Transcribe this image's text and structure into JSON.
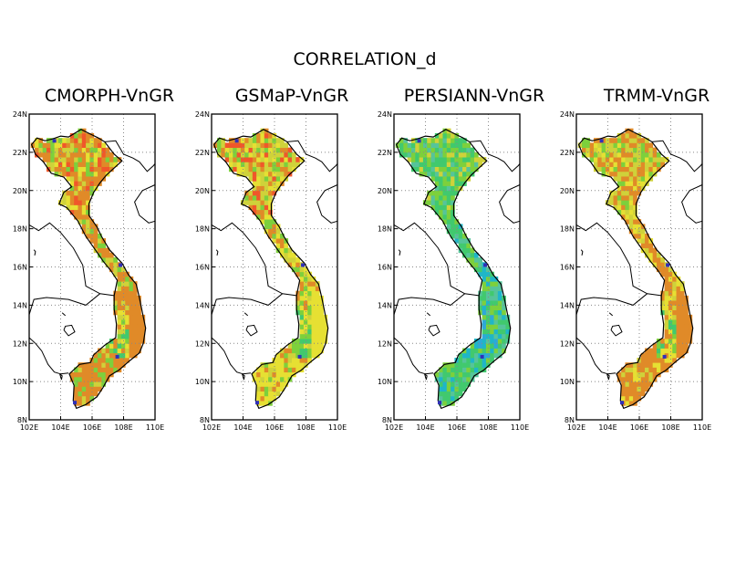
{
  "title": "CORRELATION_d",
  "panels": [
    {
      "title": "CMORPH-VnGR",
      "palette": {
        "north": [
          "#e08a28",
          "#e08a28",
          "#e08a28",
          "#cfd23a",
          "#e6e033",
          "#f0572a",
          "#7dd03c"
        ],
        "center": [
          "#e08a28",
          "#e08a28",
          "#e08a28",
          "#cfd23a",
          "#7dd03c"
        ],
        "south": [
          "#e08a28",
          "#cfd23a",
          "#7dd03c",
          "#41c96e",
          "#e6e033",
          "#e08a28"
        ],
        "coast": "#e08a28"
      }
    },
    {
      "title": "GSMaP-VnGR",
      "palette": {
        "north": [
          "#e08a28",
          "#cfd23a",
          "#e6e033",
          "#cfd23a",
          "#7dd03c",
          "#f0572a"
        ],
        "center": [
          "#e08a28",
          "#cfd23a",
          "#e6e033",
          "#7dd03c"
        ],
        "south": [
          "#cfd23a",
          "#7dd03c",
          "#41c96e",
          "#e6e033",
          "#7dd03c"
        ],
        "coast": "#e6e033"
      }
    },
    {
      "title": "PERSIANN-VnGR",
      "palette": {
        "north": [
          "#7dd03c",
          "#41c96e",
          "#7dd03c",
          "#cfd23a",
          "#41c96e",
          "#56c49a"
        ],
        "center": [
          "#7dd03c",
          "#41c96e",
          "#56c49a",
          "#1fb6c8"
        ],
        "south": [
          "#41c96e",
          "#56c49a",
          "#1fb6c8",
          "#7dd03c",
          "#2ea8d8"
        ],
        "coast": "#41c96e"
      }
    },
    {
      "title": "TRMM-VnGR",
      "palette": {
        "north": [
          "#e08a28",
          "#cfd23a",
          "#e08a28",
          "#e6e033",
          "#7dd03c",
          "#cfd23a"
        ],
        "center": [
          "#e08a28",
          "#e08a28",
          "#cfd23a",
          "#e6e033"
        ],
        "south": [
          "#e6e033",
          "#e08a28",
          "#7dd03c",
          "#41c96e",
          "#cfd23a"
        ],
        "coast": "#e08a28"
      }
    }
  ],
  "axes": {
    "lon_range": [
      102,
      110
    ],
    "lat_range": [
      8,
      24
    ],
    "x_ticks": [
      "102E",
      "104E",
      "106E",
      "108E",
      "110E"
    ],
    "y_ticks": [
      "8N",
      "10N",
      "12N",
      "14N",
      "16N",
      "18N",
      "20N",
      "22N",
      "24N"
    ],
    "grid": "dotted"
  }
}
